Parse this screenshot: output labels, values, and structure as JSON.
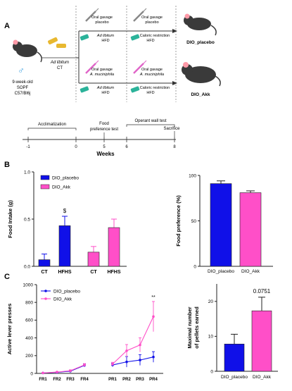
{
  "panels": {
    "a_label": "A",
    "b_label": "B",
    "c_label": "C"
  },
  "panel_a": {
    "mouse_label_symbol": "♂",
    "mouse_info": [
      "9-week-old",
      "SOPF",
      "C57/Bl6j"
    ],
    "start_diet": [
      "Ad libitum",
      "CT"
    ],
    "placebo_row": {
      "phase1_line1": "Oral gavage",
      "phase1_line2": "placebo",
      "phase1_diet_line1": "Ad libitum",
      "phase1_diet_line2": "HFD",
      "phase2_line1": "Oral gavage",
      "phase2_line2": "placebo",
      "phase2_diet_line1": "Caloric restriction",
      "phase2_diet_line2": "HFD",
      "group": "DIO_placebo"
    },
    "akk_row": {
      "phase1_line1": "Oral gavage",
      "phase1_line2": "A. muciniphila",
      "phase1_diet_line1": "Ad libitum",
      "phase1_diet_line2": "HFD",
      "phase2_line1": "Oral gavage",
      "phase2_line2": "A. muciniphila",
      "phase2_diet_line1": "Caloric restriction",
      "phase2_diet_line2": "HFD",
      "group": "DIO_Akk"
    },
    "timeline": {
      "labels": [
        "Acclimatization",
        "Food",
        "preference test",
        "Operant wall test",
        "Sacrifice"
      ],
      "ticks": [
        "-1",
        "0",
        "5",
        "6",
        "8"
      ],
      "axis_label": "Weeks"
    }
  },
  "colors": {
    "placebo": "#1010e8",
    "akk": "#ff4fc8",
    "bar_edge": "#222222",
    "pellet_green": "#2bb39a",
    "food_yellow": "#e8b830"
  },
  "chart_data": [
    {
      "id": "food_intake",
      "type": "bar",
      "ylabel": "Food Intake (g)",
      "ylim": [
        0,
        1.0
      ],
      "yticks": [
        "0.0",
        "0.5",
        "1.0"
      ],
      "groups": [
        "CT",
        "HFHS",
        "CT",
        "HFHS"
      ],
      "series": [
        {
          "name": "DIO_placebo",
          "values": [
            0.07,
            0.43
          ],
          "errors": [
            0.06,
            0.1
          ]
        },
        {
          "name": "DIO_Akk",
          "values": [
            0.15,
            0.41
          ],
          "errors": [
            0.06,
            0.09
          ]
        }
      ],
      "annotation": "$",
      "legend": [
        "DIO_placebo",
        "DIO_Akk"
      ],
      "legend_placement": "top-left"
    },
    {
      "id": "food_preference",
      "type": "bar",
      "ylabel": "Food preference (%)",
      "ylim": [
        0,
        100
      ],
      "yticks": [
        "0",
        "50",
        "100"
      ],
      "categories": [
        "DIO_placebo",
        "DIO_Akk"
      ],
      "values": [
        91,
        81
      ],
      "errors": [
        3,
        2
      ]
    },
    {
      "id": "active_lever",
      "type": "line",
      "ylabel": "Active lever presses",
      "ylim": [
        0,
        1000
      ],
      "yticks": [
        "0",
        "200",
        "400",
        "600",
        "800",
        "1000"
      ],
      "categories": [
        "FR1",
        "FR2",
        "FR3",
        "FR4",
        "PR1",
        "PR2",
        "PR3",
        "PR4"
      ],
      "series": [
        {
          "name": "DIO_placebo",
          "values": [
            5,
            12,
            25,
            90,
            95,
            130,
            150,
            185
          ],
          "errors": [
            3,
            5,
            10,
            15,
            20,
            60,
            60,
            60
          ]
        },
        {
          "name": "DIO_Akk",
          "values": [
            5,
            15,
            30,
            95,
            105,
            255,
            320,
            640
          ],
          "errors": [
            3,
            5,
            10,
            15,
            20,
            70,
            80,
            170
          ]
        }
      ],
      "annotation": "**",
      "legend": [
        "DIO_placebo",
        "DIO_Akk"
      ],
      "legend_placement": "top-left"
    },
    {
      "id": "pellets",
      "type": "bar",
      "ylabel_line1": "Maximal number",
      "ylabel_line2": "of pellets earned",
      "ylim": [
        0,
        25
      ],
      "yticks": [
        "0",
        "10",
        "20"
      ],
      "categories": [
        "DIO_placebo",
        "DIO_Akk"
      ],
      "values": [
        7.8,
        17.3
      ],
      "errors": [
        2.8,
        3.9
      ],
      "annotation": "0.0751"
    }
  ]
}
